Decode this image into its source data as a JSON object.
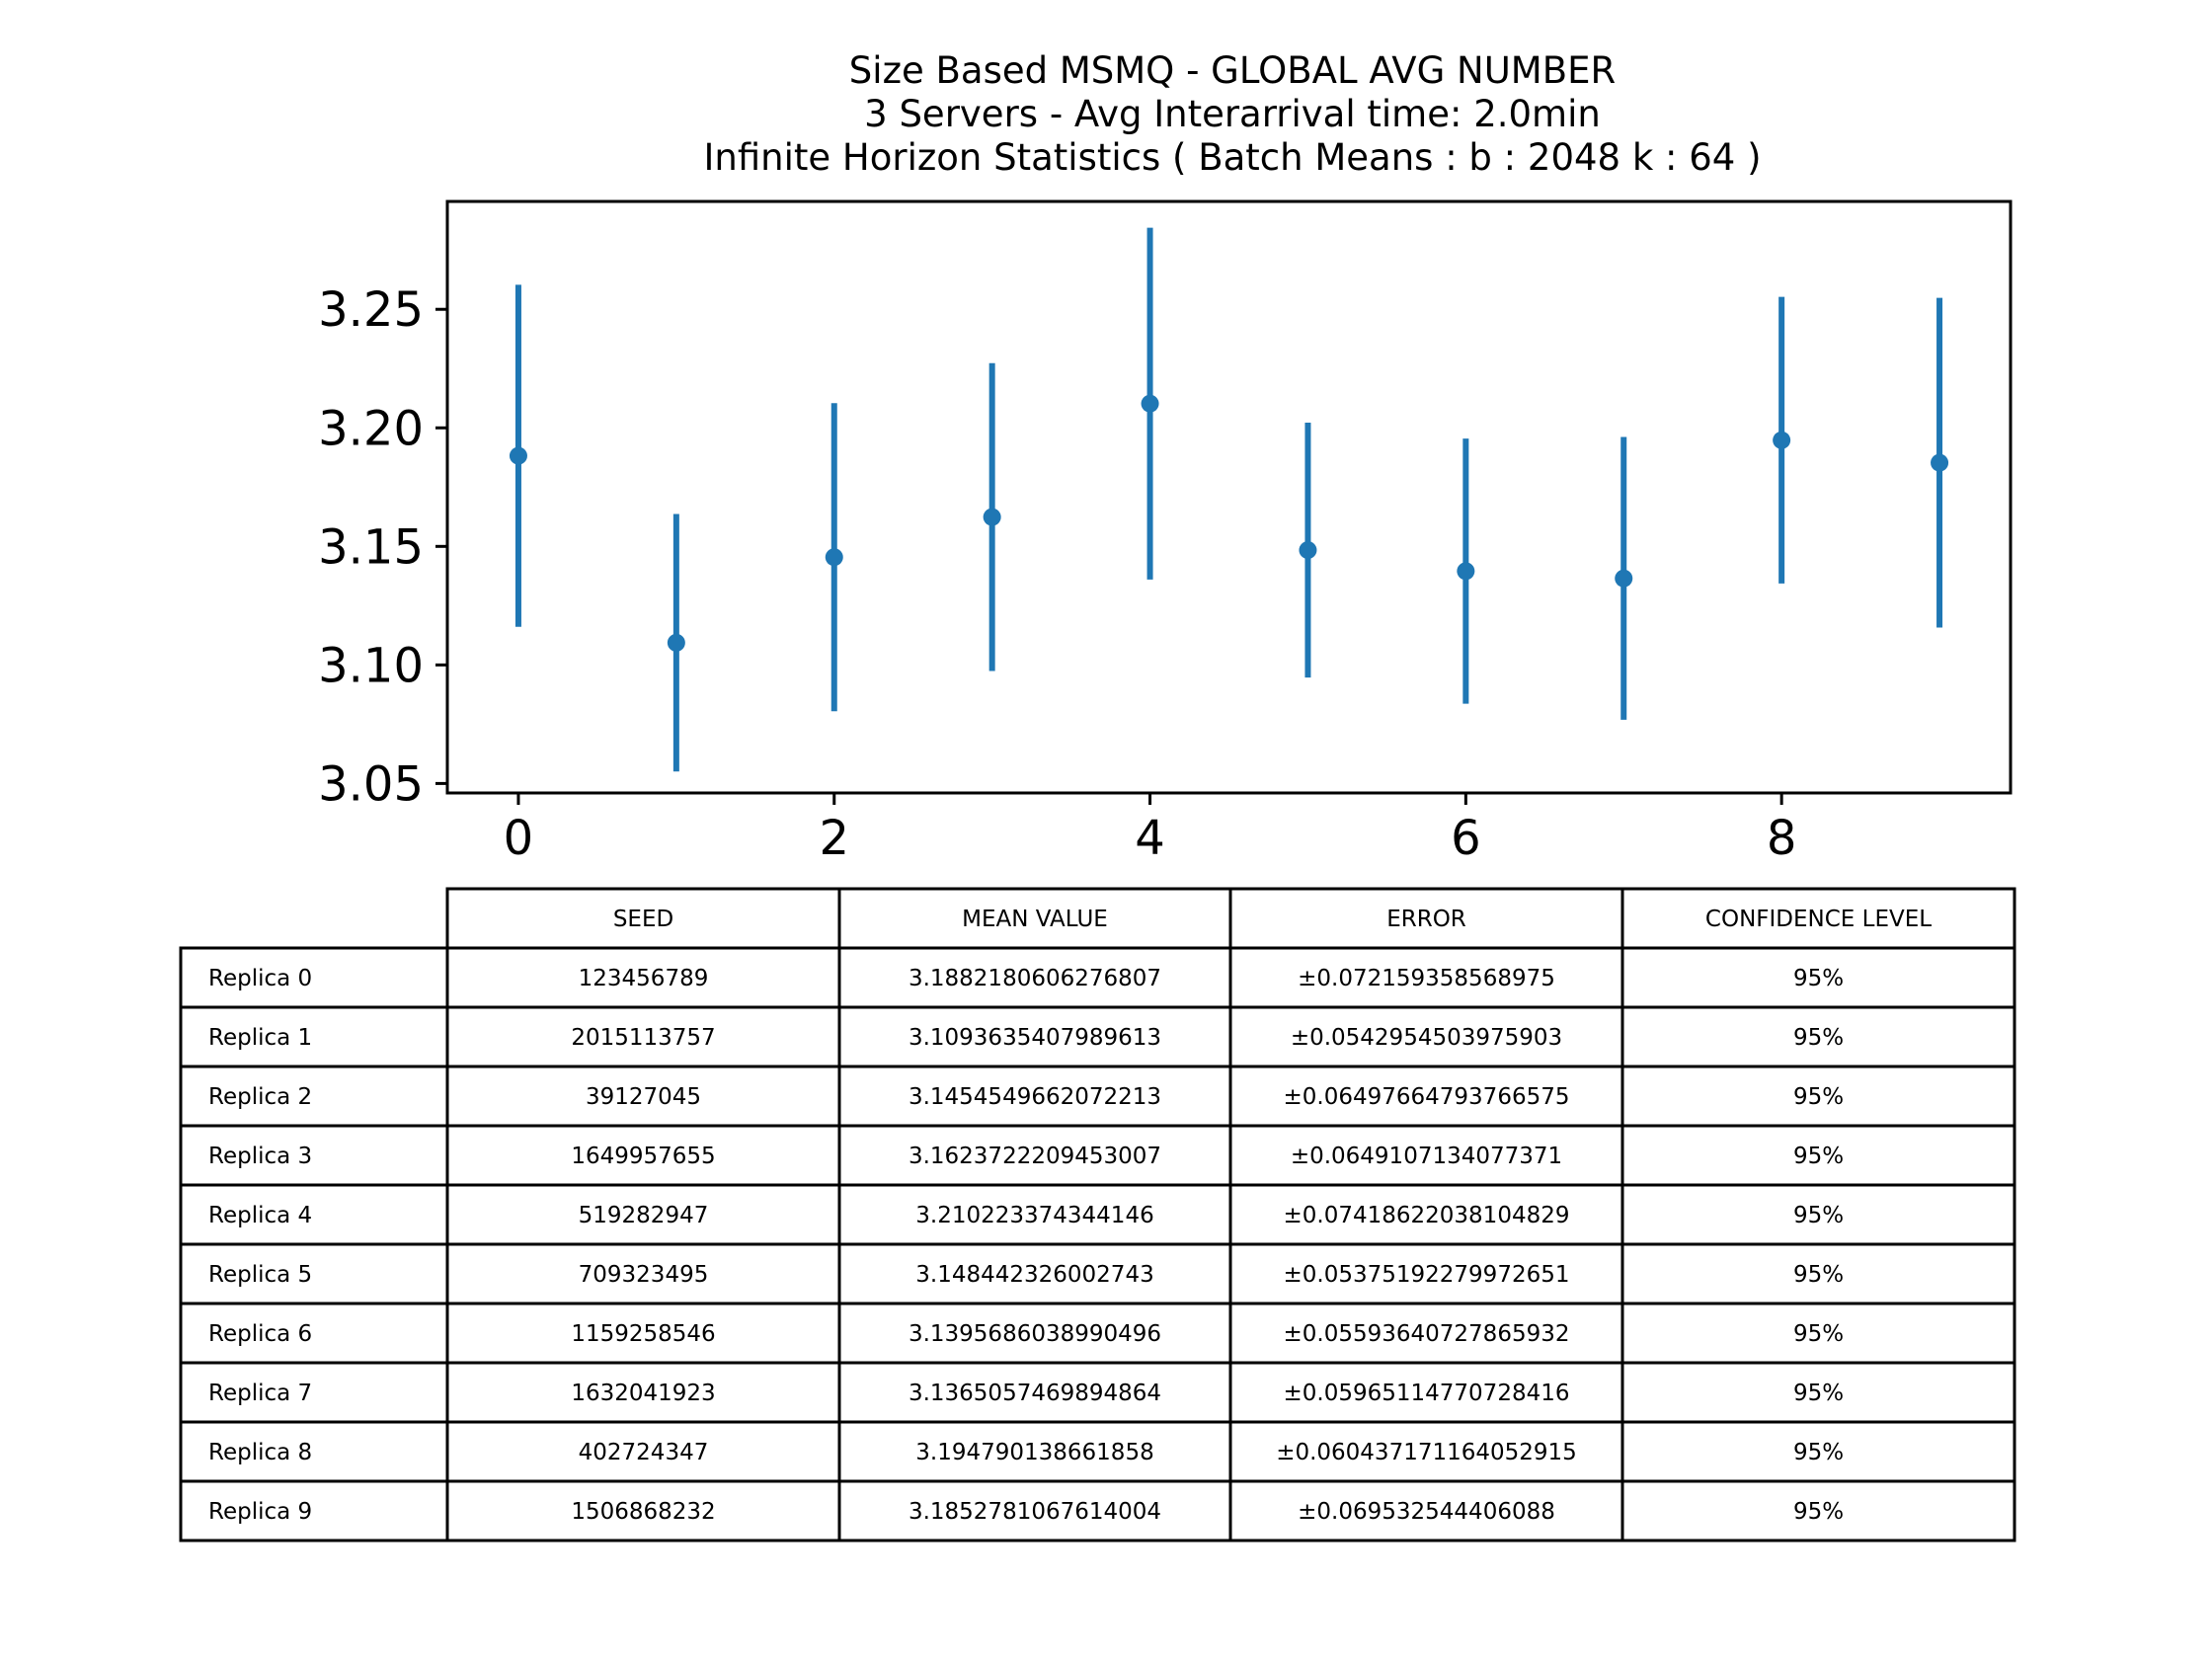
{
  "chart_data": {
    "type": "scatter",
    "style": "errorbar",
    "title_lines": [
      "Size Based MSMQ - GLOBAL AVG NUMBER",
      "3 Servers -  Avg Interarrival time: 2.0min",
      "Infinite Horizon Statistics ( Batch Means : b : 2048  k : 64 )"
    ],
    "xlabel": "",
    "ylabel": "",
    "xlim": [
      -0.45,
      9.45
    ],
    "ylim": [
      3.046,
      3.2955
    ],
    "x_ticks": [
      0,
      2,
      4,
      6,
      8
    ],
    "x_tick_labels": [
      "0",
      "2",
      "4",
      "6",
      "8"
    ],
    "y_ticks": [
      3.05,
      3.1,
      3.15,
      3.2,
      3.25
    ],
    "y_tick_labels": [
      "3.05",
      "3.10",
      "3.15",
      "3.20",
      "3.25"
    ],
    "grid": false,
    "color": "#1f77b4",
    "x": [
      0,
      1,
      2,
      3,
      4,
      5,
      6,
      7,
      8,
      9
    ],
    "y": [
      3.1882180606276807,
      3.1093635407989613,
      3.1454549662072213,
      3.1623722209453007,
      3.210223374344146,
      3.148442326002743,
      3.1395686038990496,
      3.1365057469894864,
      3.194790138661858,
      3.1852781067614004
    ],
    "yerr": [
      0.072159358568975,
      0.0542954503975903,
      0.06497664793766575,
      0.0649107134077371,
      0.07418622038104829,
      0.05375192279972651,
      0.05593640727865932,
      0.05965114770728416,
      0.060437171164052915,
      0.069532544406088
    ],
    "table": {
      "col_labels": [
        "SEED",
        "MEAN VALUE",
        "ERROR",
        "CONFIDENCE LEVEL"
      ],
      "rows": [
        {
          "label": "Replica 0",
          "seed": "123456789",
          "mean": "3.1882180606276807",
          "error": "±0.072159358568975",
          "conf": "95%"
        },
        {
          "label": "Replica 1",
          "seed": "2015113757",
          "mean": "3.1093635407989613",
          "error": "±0.0542954503975903",
          "conf": "95%"
        },
        {
          "label": "Replica 2",
          "seed": "39127045",
          "mean": "3.1454549662072213",
          "error": "±0.06497664793766575",
          "conf": "95%"
        },
        {
          "label": "Replica 3",
          "seed": "1649957655",
          "mean": "3.1623722209453007",
          "error": "±0.0649107134077371",
          "conf": "95%"
        },
        {
          "label": "Replica 4",
          "seed": "519282947",
          "mean": "3.210223374344146",
          "error": "±0.07418622038104829",
          "conf": "95%"
        },
        {
          "label": "Replica 5",
          "seed": "709323495",
          "mean": "3.148442326002743",
          "error": "±0.05375192279972651",
          "conf": "95%"
        },
        {
          "label": "Replica 6",
          "seed": "1159258546",
          "mean": "3.1395686038990496",
          "error": "±0.05593640727865932",
          "conf": "95%"
        },
        {
          "label": "Replica 7",
          "seed": "1632041923",
          "mean": "3.1365057469894864",
          "error": "±0.05965114770728416",
          "conf": "95%"
        },
        {
          "label": "Replica 8",
          "seed": "402724347",
          "mean": "3.194790138661858",
          "error": "±0.060437171164052915",
          "conf": "95%"
        },
        {
          "label": "Replica 9",
          "seed": "1506868232",
          "mean": "3.1852781067614004",
          "error": "±0.069532544406088",
          "conf": "95%"
        }
      ]
    }
  }
}
